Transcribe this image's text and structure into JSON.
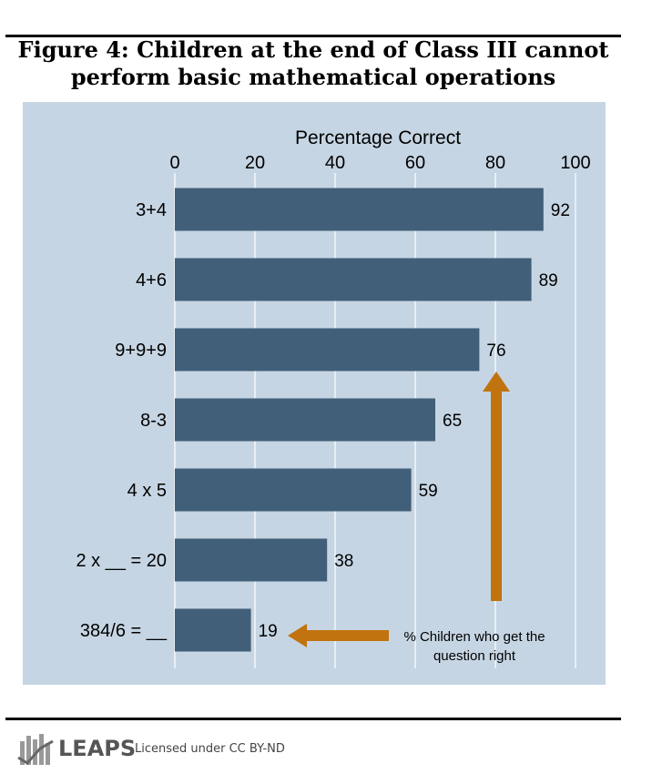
{
  "title": {
    "line1": "Figure 4: Children at the end of Class III cannot",
    "line2": "perform basic mathematical operations"
  },
  "chart_data": {
    "type": "bar",
    "orientation": "horizontal",
    "categories": [
      "3+4",
      "4+6",
      "9+9+9",
      "8-3",
      "4 x 5",
      "2 x __ = 20",
      "384/6 = __"
    ],
    "values": [
      92,
      89,
      76,
      65,
      59,
      38,
      19
    ],
    "xlabel": "Percentage Correct",
    "xlim": [
      0,
      100
    ],
    "xticks": [
      0,
      20,
      40,
      60,
      80,
      100
    ],
    "grid": true,
    "annotation": {
      "line1": "% Children who get the",
      "line2": "question right"
    },
    "colors": {
      "bar": "#415f78",
      "panel": "#c6d5e3",
      "grid": "#ffffff",
      "arrow": "#c0730e"
    }
  },
  "footer": {
    "brand": "LEAPS",
    "license": "Licensed under CC BY-ND"
  }
}
